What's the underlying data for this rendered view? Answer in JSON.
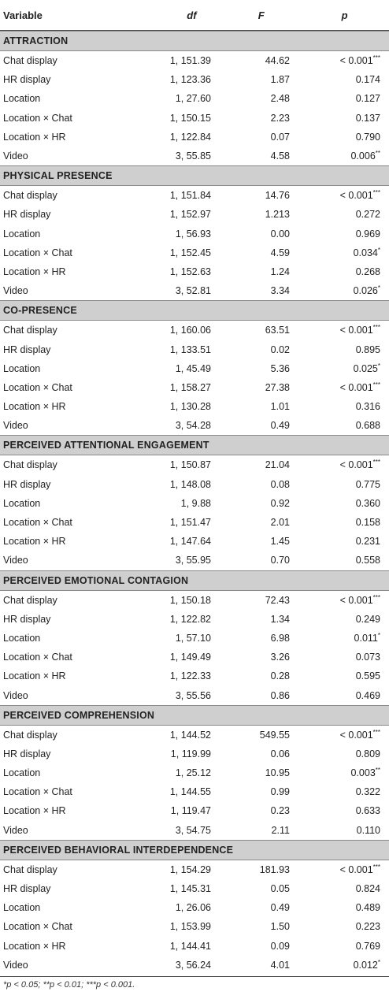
{
  "header": {
    "variable": "Variable",
    "df": "df",
    "f": "F",
    "p": "p"
  },
  "sections": [
    {
      "title": "ATTRACTION",
      "rows": [
        {
          "variable": "Chat display",
          "df": "1, 151.39",
          "f": "44.62",
          "p": "< 0.001",
          "stars": "***"
        },
        {
          "variable": "HR display",
          "df": "1, 123.36",
          "f": "1.87",
          "p": "0.174",
          "stars": ""
        },
        {
          "variable": "Location",
          "df": "1, 27.60",
          "f": "2.48",
          "p": "0.127",
          "stars": ""
        },
        {
          "variable": "Location × Chat",
          "df": "1, 150.15",
          "f": "2.23",
          "p": "0.137",
          "stars": ""
        },
        {
          "variable": "Location × HR",
          "df": "1, 122.84",
          "f": "0.07",
          "p": "0.790",
          "stars": ""
        },
        {
          "variable": "Video",
          "df": "3, 55.85",
          "f": "4.58",
          "p": "0.006",
          "stars": "**"
        }
      ]
    },
    {
      "title": "PHYSICAL PRESENCE",
      "rows": [
        {
          "variable": "Chat display",
          "df": "1, 151.84",
          "f": "14.76",
          "p": "< 0.001",
          "stars": "***"
        },
        {
          "variable": "HR display",
          "df": "1, 152.97",
          "f": "1.213",
          "p": "0.272",
          "stars": ""
        },
        {
          "variable": "Location",
          "df": "1, 56.93",
          "f": "0.00",
          "p": "0.969",
          "stars": ""
        },
        {
          "variable": "Location × Chat",
          "df": "1, 152.45",
          "f": "4.59",
          "p": "0.034",
          "stars": "*"
        },
        {
          "variable": "Location × HR",
          "df": "1, 152.63",
          "f": "1.24",
          "p": "0.268",
          "stars": ""
        },
        {
          "variable": "Video",
          "df": "3, 52.81",
          "f": "3.34",
          "p": "0.026",
          "stars": "*"
        }
      ]
    },
    {
      "title": "CO-PRESENCE",
      "rows": [
        {
          "variable": "Chat display",
          "df": "1, 160.06",
          "f": "63.51",
          "p": "< 0.001",
          "stars": "***"
        },
        {
          "variable": "HR display",
          "df": "1, 133.51",
          "f": "0.02",
          "p": "0.895",
          "stars": ""
        },
        {
          "variable": "Location",
          "df": "1, 45.49",
          "f": "5.36",
          "p": "0.025",
          "stars": "*"
        },
        {
          "variable": "Location × Chat",
          "df": "1, 158.27",
          "f": "27.38",
          "p": "< 0.001",
          "stars": "***"
        },
        {
          "variable": "Location × HR",
          "df": "1, 130.28",
          "f": "1.01",
          "p": "0.316",
          "stars": ""
        },
        {
          "variable": "Video",
          "df": "3, 54.28",
          "f": "0.49",
          "p": "0.688",
          "stars": ""
        }
      ]
    },
    {
      "title": "PERCEIVED ATTENTIONAL ENGAGEMENT",
      "rows": [
        {
          "variable": "Chat display",
          "df": "1, 150.87",
          "f": "21.04",
          "p": "< 0.001",
          "stars": "***"
        },
        {
          "variable": "HR display",
          "df": "1, 148.08",
          "f": "0.08",
          "p": "0.775",
          "stars": ""
        },
        {
          "variable": "Location",
          "df": "1, 9.88",
          "f": "0.92",
          "p": "0.360",
          "stars": ""
        },
        {
          "variable": "Location × Chat",
          "df": "1, 151.47",
          "f": "2.01",
          "p": "0.158",
          "stars": ""
        },
        {
          "variable": "Location × HR",
          "df": "1, 147.64",
          "f": "1.45",
          "p": "0.231",
          "stars": ""
        },
        {
          "variable": "Video",
          "df": "3, 55.95",
          "f": "0.70",
          "p": "0.558",
          "stars": ""
        }
      ]
    },
    {
      "title": "PERCEIVED EMOTIONAL CONTAGION",
      "rows": [
        {
          "variable": "Chat display",
          "df": "1, 150.18",
          "f": "72.43",
          "p": "< 0.001",
          "stars": "***"
        },
        {
          "variable": "HR display",
          "df": "1, 122.82",
          "f": "1.34",
          "p": "0.249",
          "stars": ""
        },
        {
          "variable": "Location",
          "df": "1, 57.10",
          "f": "6.98",
          "p": "0.011",
          "stars": "*"
        },
        {
          "variable": "Location × Chat",
          "df": "1, 149.49",
          "f": "3.26",
          "p": "0.073",
          "stars": ""
        },
        {
          "variable": "Location × HR",
          "df": "1, 122.33",
          "f": "0.28",
          "p": "0.595",
          "stars": ""
        },
        {
          "variable": "Video",
          "df": "3, 55.56",
          "f": "0.86",
          "p": "0.469",
          "stars": ""
        }
      ]
    },
    {
      "title": "PERCEIVED COMPREHENSION",
      "rows": [
        {
          "variable": "Chat display",
          "df": "1, 144.52",
          "f": "549.55",
          "p": "< 0.001",
          "stars": "***"
        },
        {
          "variable": "HR display",
          "df": "1, 119.99",
          "f": "0.06",
          "p": "0.809",
          "stars": ""
        },
        {
          "variable": "Location",
          "df": "1, 25.12",
          "f": "10.95",
          "p": "0.003",
          "stars": "**"
        },
        {
          "variable": "Location × Chat",
          "df": "1, 144.55",
          "f": "0.99",
          "p": "0.322",
          "stars": ""
        },
        {
          "variable": "Location × HR",
          "df": "1, 119.47",
          "f": "0.23",
          "p": "0.633",
          "stars": ""
        },
        {
          "variable": "Video",
          "df": "3, 54.75",
          "f": "2.11",
          "p": "0.110",
          "stars": ""
        }
      ]
    },
    {
      "title": "PERCEIVED BEHAVIORAL INTERDEPENDENCE",
      "rows": [
        {
          "variable": "Chat display",
          "df": "1, 154.29",
          "f": "181.93",
          "p": "< 0.001",
          "stars": "***"
        },
        {
          "variable": "HR display",
          "df": "1, 145.31",
          "f": "0.05",
          "p": "0.824",
          "stars": ""
        },
        {
          "variable": "Location",
          "df": "1, 26.06",
          "f": "0.49",
          "p": "0.489",
          "stars": ""
        },
        {
          "variable": "Location × Chat",
          "df": "1, 153.99",
          "f": "1.50",
          "p": "0.223",
          "stars": ""
        },
        {
          "variable": "Location × HR",
          "df": "1, 144.41",
          "f": "0.09",
          "p": "0.769",
          "stars": ""
        },
        {
          "variable": "Video",
          "df": "3, 56.24",
          "f": "4.01",
          "p": "0.012",
          "stars": "*"
        }
      ]
    }
  ],
  "footnote": "*p < 0.05; **p < 0.01; ***p < 0.001."
}
